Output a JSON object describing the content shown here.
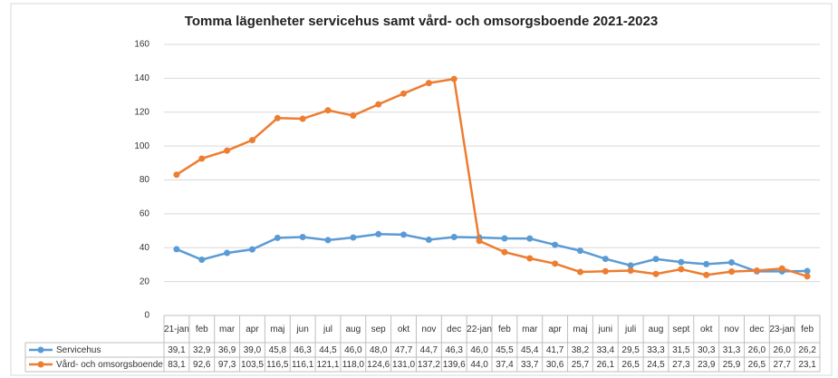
{
  "chart_data": {
    "type": "line",
    "title": "Tomma lägenheter servicehus samt vård- och omsorgsboende 2021-2023",
    "categories": [
      "21-jan",
      "feb",
      "mar",
      "apr",
      "maj",
      "jun",
      "jul",
      "aug",
      "sep",
      "okt",
      "nov",
      "dec",
      "22-jan",
      "feb",
      "mar",
      "apr",
      "maj",
      "juni",
      "juli",
      "aug",
      "sept",
      "okt",
      "nov",
      "dec",
      "23-jan",
      "feb"
    ],
    "series": [
      {
        "name": "Servicehus",
        "color": "#5b9bd5",
        "values": [
          39.1,
          32.9,
          36.9,
          39.0,
          45.8,
          46.3,
          44.5,
          46.0,
          48.0,
          47.7,
          44.7,
          46.3,
          46.0,
          45.5,
          45.4,
          41.7,
          38.2,
          33.4,
          29.5,
          33.3,
          31.5,
          30.3,
          31.3,
          26.0,
          26.0,
          26.2
        ],
        "value_labels": [
          "39,1",
          "32,9",
          "36,9",
          "39,0",
          "45,8",
          "46,3",
          "44,5",
          "46,0",
          "48,0",
          "47,7",
          "44,7",
          "46,3",
          "46,0",
          "45,5",
          "45,4",
          "41,7",
          "38,2",
          "33,4",
          "29,5",
          "33,3",
          "31,5",
          "30,3",
          "31,3",
          "26,0",
          "26,0",
          "26,2"
        ]
      },
      {
        "name": "Vård- och omsorgsboende",
        "color": "#ed7d31",
        "values": [
          83.1,
          92.6,
          97.3,
          103.5,
          116.5,
          116.1,
          121.1,
          118.0,
          124.6,
          131.0,
          137.2,
          139.6,
          44.0,
          37.4,
          33.7,
          30.6,
          25.7,
          26.1,
          26.5,
          24.5,
          27.3,
          23.9,
          25.9,
          26.5,
          27.7,
          23.1
        ],
        "value_labels": [
          "83,1",
          "92,6",
          "97,3",
          "103,5",
          "116,5",
          "116,1",
          "121,1",
          "118,0",
          "124,6",
          "131,0",
          "137,2",
          "139,6",
          "44,0",
          "37,4",
          "33,7",
          "30,6",
          "25,7",
          "26,1",
          "26,5",
          "24,5",
          "27,3",
          "23,9",
          "25,9",
          "26,5",
          "27,7",
          "23,1"
        ]
      }
    ],
    "ylim": [
      0,
      160
    ],
    "yticks": [
      0,
      20,
      40,
      60,
      80,
      100,
      120,
      140,
      160
    ],
    "grid": true
  }
}
